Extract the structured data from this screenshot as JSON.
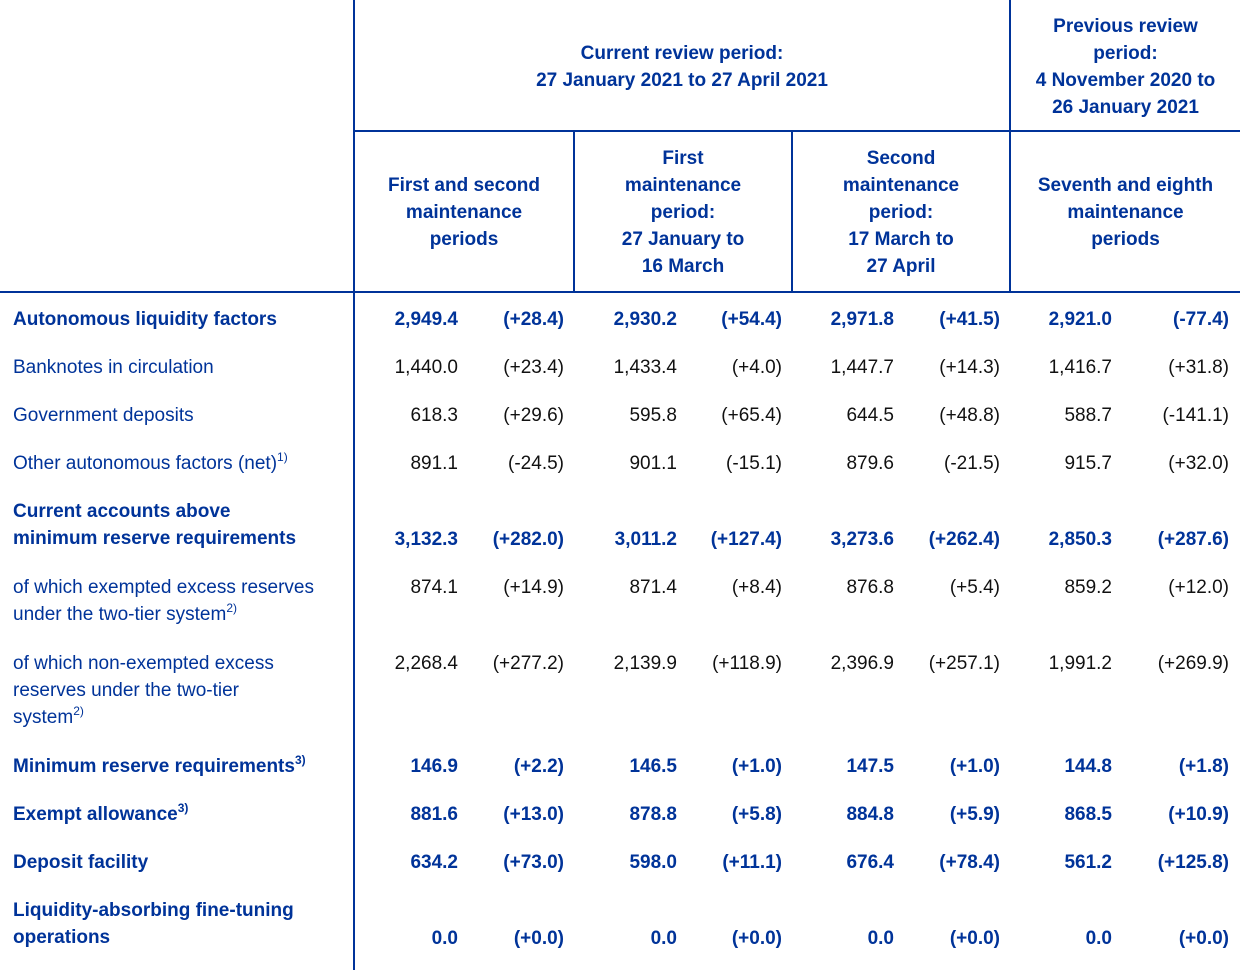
{
  "header": {
    "current": [
      "Current review period:",
      "27 January 2021 to 27 April 2021"
    ],
    "previous": [
      "Previous review",
      "period:",
      "4 November 2020 to",
      "26 January 2021"
    ],
    "sub": [
      [
        "First and second",
        "maintenance",
        "periods"
      ],
      [
        "First",
        "maintenance",
        "period:",
        "27 January to",
        "16 March"
      ],
      [
        "Second",
        "maintenance",
        "period:",
        "17 March to",
        "27 April"
      ],
      [
        "Seventh and eighth",
        "maintenance",
        "periods"
      ]
    ]
  },
  "rows": [
    {
      "label": [
        "Autonomous liquidity factors"
      ],
      "sup": "",
      "bold": true,
      "values": [
        "2,949.4",
        "(+28.4)",
        "2,930.2",
        "(+54.4)",
        "2,971.8",
        "(+41.5)",
        "2,921.0",
        "(-77.4)"
      ]
    },
    {
      "label": [
        "Banknotes in circulation"
      ],
      "sup": "",
      "bold": false,
      "values": [
        "1,440.0",
        "(+23.4)",
        "1,433.4",
        "(+4.0)",
        "1,447.7",
        "(+14.3)",
        "1,416.7",
        "(+31.8)"
      ]
    },
    {
      "label": [
        "Government deposits"
      ],
      "sup": "",
      "bold": false,
      "values": [
        "618.3",
        "(+29.6)",
        "595.8",
        "(+65.4)",
        "644.5",
        "(+48.8)",
        "588.7",
        "(-141.1)"
      ]
    },
    {
      "label": [
        "Other autonomous factors (net)"
      ],
      "sup": "1)",
      "bold": false,
      "values": [
        "891.1",
        "(-24.5)",
        "901.1",
        "(-15.1)",
        "879.6",
        "(-21.5)",
        "915.7",
        "(+32.0)"
      ]
    },
    {
      "label": [
        "Current accounts above",
        "minimum reserve requirements"
      ],
      "sup": "",
      "bold": true,
      "values": [
        "3,132.3",
        "(+282.0)",
        "3,011.2",
        "(+127.4)",
        "3,273.6",
        "(+262.4)",
        "2,850.3",
        "(+287.6)"
      ]
    },
    {
      "label": [
        "of which exempted excess reserves",
        "under the two-tier system"
      ],
      "sup": "2)",
      "bold": false,
      "values": [
        "874.1",
        "(+14.9)",
        "871.4",
        "(+8.4)",
        "876.8",
        "(+5.4)",
        "859.2",
        "(+12.0)"
      ]
    },
    {
      "label": [
        "of which non-exempted excess",
        "reserves under the two-tier",
        "system"
      ],
      "sup": "2)",
      "bold": false,
      "values": [
        "2,268.4",
        "(+277.2)",
        "2,139.9",
        "(+118.9)",
        "2,396.9",
        "(+257.1)",
        "1,991.2",
        "(+269.9)"
      ]
    },
    {
      "label": [
        "Minimum reserve requirements"
      ],
      "sup": "3)",
      "bold": true,
      "values": [
        "146.9",
        "(+2.2)",
        "146.5",
        "(+1.0)",
        "147.5",
        "(+1.0)",
        "144.8",
        "(+1.8)"
      ]
    },
    {
      "label": [
        "Exempt allowance"
      ],
      "sup": "3)",
      "bold": true,
      "values": [
        "881.6",
        "(+13.0)",
        "878.8",
        "(+5.8)",
        "884.8",
        "(+5.9)",
        "868.5",
        "(+10.9)"
      ]
    },
    {
      "label": [
        "Deposit facility"
      ],
      "sup": "",
      "bold": true,
      "values": [
        "634.2",
        "(+73.0)",
        "598.0",
        "(+11.1)",
        "676.4",
        "(+78.4)",
        "561.2",
        "(+125.8)"
      ]
    },
    {
      "label": [
        "Liquidity-absorbing fine-tuning",
        "operations"
      ],
      "sup": "",
      "bold": true,
      "values": [
        "0.0",
        "(+0.0)",
        "0.0",
        "(+0.0)",
        "0.0",
        "(+0.0)",
        "0.0",
        "(+0.0)"
      ]
    }
  ]
}
